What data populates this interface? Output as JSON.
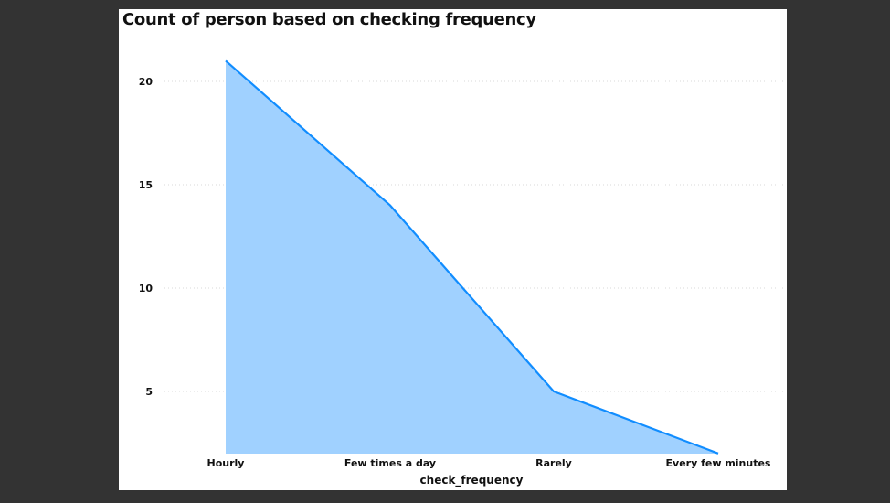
{
  "chart_data": {
    "type": "area",
    "title": "Count of person based on checking frequency",
    "xlabel": "check_frequency",
    "ylabel": "",
    "categories": [
      "Hourly",
      "Few times a day",
      "Rarely",
      "Every few minutes"
    ],
    "values": [
      21,
      14,
      5,
      2
    ],
    "yticks": [
      5,
      10,
      15,
      20
    ],
    "ylim": [
      2,
      22
    ],
    "grid": true,
    "colors": {
      "line": "#118DFF",
      "fill": "#A0D1FF",
      "grid": "#D9D9D9",
      "background": "#FFFFFF",
      "frame": "#333333"
    }
  }
}
